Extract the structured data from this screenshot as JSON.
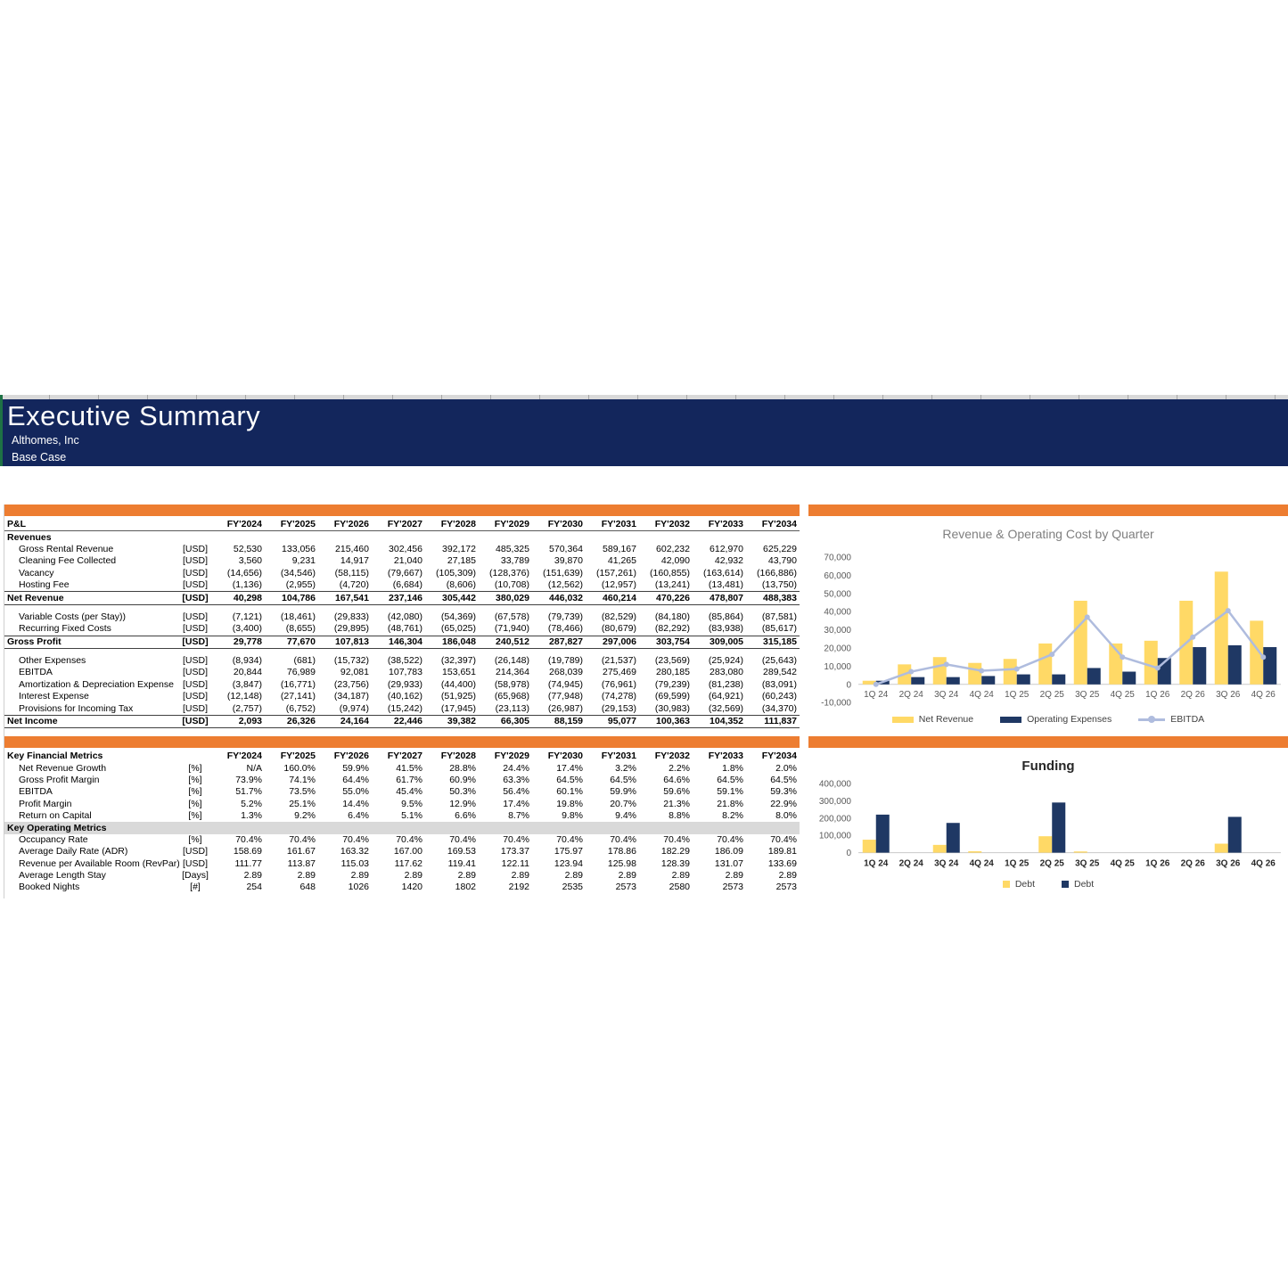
{
  "header": {
    "title": "Executive Summary",
    "company": "Althomes, Inc",
    "scenario": "Base Case"
  },
  "years": [
    "FY'2024",
    "FY'2025",
    "FY'2026",
    "FY'2027",
    "FY'2028",
    "FY'2029",
    "FY'2030",
    "FY'2031",
    "FY'2032",
    "FY'2033",
    "FY'2034"
  ],
  "pnl": {
    "header_label": "P&L",
    "rows": [
      {
        "type": "section",
        "label": "Revenues"
      },
      {
        "type": "item",
        "label": "Gross Rental Revenue",
        "unit": "[USD]",
        "values": [
          "52,530",
          "133,056",
          "215,460",
          "302,456",
          "392,172",
          "485,325",
          "570,364",
          "589,167",
          "602,232",
          "612,970",
          "625,229"
        ]
      },
      {
        "type": "item",
        "label": "Cleaning Fee Collected",
        "unit": "[USD]",
        "values": [
          "3,560",
          "9,231",
          "14,917",
          "21,040",
          "27,185",
          "33,789",
          "39,870",
          "41,265",
          "42,090",
          "42,932",
          "43,790"
        ]
      },
      {
        "type": "item",
        "label": "Vacancy",
        "unit": "[USD]",
        "values": [
          "(14,656)",
          "(34,546)",
          "(58,115)",
          "(79,667)",
          "(105,309)",
          "(128,376)",
          "(151,639)",
          "(157,261)",
          "(160,855)",
          "(163,614)",
          "(166,886)"
        ]
      },
      {
        "type": "item",
        "label": "Hosting Fee",
        "unit": "[USD]",
        "values": [
          "(1,136)",
          "(2,955)",
          "(4,720)",
          "(6,684)",
          "(8,606)",
          "(10,708)",
          "(12,562)",
          "(12,957)",
          "(13,241)",
          "(13,481)",
          "(13,750)"
        ]
      },
      {
        "type": "total",
        "label": "Net Revenue",
        "unit": "[USD]",
        "values": [
          "40,298",
          "104,786",
          "167,541",
          "237,146",
          "305,442",
          "380,029",
          "446,032",
          "460,214",
          "470,226",
          "478,807",
          "488,383"
        ]
      },
      {
        "type": "spacer"
      },
      {
        "type": "item",
        "label": "Variable Costs (per Stay))",
        "unit": "[USD]",
        "values": [
          "(7,121)",
          "(18,461)",
          "(29,833)",
          "(42,080)",
          "(54,369)",
          "(67,578)",
          "(79,739)",
          "(82,529)",
          "(84,180)",
          "(85,864)",
          "(87,581)"
        ]
      },
      {
        "type": "item",
        "label": "Recurring Fixed Costs",
        "unit": "[USD]",
        "values": [
          "(3,400)",
          "(8,655)",
          "(29,895)",
          "(48,761)",
          "(65,025)",
          "(71,940)",
          "(78,466)",
          "(80,679)",
          "(82,292)",
          "(83,938)",
          "(85,617)"
        ]
      },
      {
        "type": "total",
        "label": "Gross Profit",
        "unit": "[USD]",
        "values": [
          "29,778",
          "77,670",
          "107,813",
          "146,304",
          "186,048",
          "240,512",
          "287,827",
          "297,006",
          "303,754",
          "309,005",
          "315,185"
        ]
      },
      {
        "type": "spacer"
      },
      {
        "type": "item",
        "label": "Other Expenses",
        "unit": "[USD]",
        "values": [
          "(8,934)",
          "(681)",
          "(15,732)",
          "(38,522)",
          "(32,397)",
          "(26,148)",
          "(19,789)",
          "(21,537)",
          "(23,569)",
          "(25,924)",
          "(25,643)"
        ]
      },
      {
        "type": "item",
        "label": "EBITDA",
        "unit": "[USD]",
        "values": [
          "20,844",
          "76,989",
          "92,081",
          "107,783",
          "153,651",
          "214,364",
          "268,039",
          "275,469",
          "280,185",
          "283,080",
          "289,542"
        ]
      },
      {
        "type": "item",
        "label": "Amortization & Depreciation Expense",
        "unit": "[USD]",
        "values": [
          "(3,847)",
          "(16,771)",
          "(23,756)",
          "(29,933)",
          "(44,400)",
          "(58,978)",
          "(74,945)",
          "(76,961)",
          "(79,239)",
          "(81,238)",
          "(83,091)"
        ]
      },
      {
        "type": "item",
        "label": "Interest Expense",
        "unit": "[USD]",
        "values": [
          "(12,148)",
          "(27,141)",
          "(34,187)",
          "(40,162)",
          "(51,925)",
          "(65,968)",
          "(77,948)",
          "(74,278)",
          "(69,599)",
          "(64,921)",
          "(60,243)"
        ]
      },
      {
        "type": "item",
        "label": "Provisions for Incoming Tax",
        "unit": "[USD]",
        "values": [
          "(2,757)",
          "(6,752)",
          "(9,974)",
          "(15,242)",
          "(17,945)",
          "(23,113)",
          "(26,987)",
          "(29,153)",
          "(30,983)",
          "(32,569)",
          "(34,370)"
        ]
      },
      {
        "type": "total",
        "label": "Net Income",
        "unit": "[USD]",
        "values": [
          "2,093",
          "26,326",
          "24,164",
          "22,446",
          "39,382",
          "66,305",
          "88,159",
          "95,077",
          "100,363",
          "104,352",
          "111,837"
        ]
      }
    ]
  },
  "metrics": {
    "header_label": "Key Financial Metrics",
    "rows": [
      {
        "type": "item",
        "label": "Net Revenue Growth",
        "unit": "[%]",
        "values": [
          "N/A",
          "160.0%",
          "59.9%",
          "41.5%",
          "28.8%",
          "24.4%",
          "17.4%",
          "3.2%",
          "2.2%",
          "1.8%",
          "2.0%"
        ]
      },
      {
        "type": "item",
        "label": "Gross Profit Margin",
        "unit": "[%]",
        "values": [
          "73.9%",
          "74.1%",
          "64.4%",
          "61.7%",
          "60.9%",
          "63.3%",
          "64.5%",
          "64.5%",
          "64.6%",
          "64.5%",
          "64.5%"
        ]
      },
      {
        "type": "item",
        "label": "EBITDA",
        "unit": "[%]",
        "values": [
          "51.7%",
          "73.5%",
          "55.0%",
          "45.4%",
          "50.3%",
          "56.4%",
          "60.1%",
          "59.9%",
          "59.6%",
          "59.1%",
          "59.3%"
        ]
      },
      {
        "type": "item",
        "label": "Profit Margin",
        "unit": "[%]",
        "values": [
          "5.2%",
          "25.1%",
          "14.4%",
          "9.5%",
          "12.9%",
          "17.4%",
          "19.8%",
          "20.7%",
          "21.3%",
          "21.8%",
          "22.9%"
        ]
      },
      {
        "type": "item",
        "label": "Return on Capital",
        "unit": "[%]",
        "values": [
          "1.3%",
          "9.2%",
          "6.4%",
          "5.1%",
          "6.6%",
          "8.7%",
          "9.8%",
          "9.4%",
          "8.8%",
          "8.2%",
          "8.0%"
        ]
      },
      {
        "type": "band",
        "label": "Key Operating Metrics"
      },
      {
        "type": "item",
        "label": "Occupancy Rate",
        "unit": "[%]",
        "values": [
          "70.4%",
          "70.4%",
          "70.4%",
          "70.4%",
          "70.4%",
          "70.4%",
          "70.4%",
          "70.4%",
          "70.4%",
          "70.4%",
          "70.4%"
        ]
      },
      {
        "type": "item",
        "label": "Average Daily Rate (ADR)",
        "unit": "[USD]",
        "values": [
          "158.69",
          "161.67",
          "163.32",
          "167.00",
          "169.53",
          "173.37",
          "175.97",
          "178.86",
          "182.29",
          "186.09",
          "189.81"
        ]
      },
      {
        "type": "item",
        "label": "Revenue per Available Room (RevPar)",
        "unit": "[USD]",
        "values": [
          "111.77",
          "113.87",
          "115.03",
          "117.62",
          "119.41",
          "122.11",
          "123.94",
          "125.98",
          "128.39",
          "131.07",
          "133.69"
        ]
      },
      {
        "type": "item",
        "label": "Average Length Stay",
        "unit": "[Days]",
        "values": [
          "2.89",
          "2.89",
          "2.89",
          "2.89",
          "2.89",
          "2.89",
          "2.89",
          "2.89",
          "2.89",
          "2.89",
          "2.89"
        ]
      },
      {
        "type": "item",
        "label": "Booked Nights",
        "unit": "[#]",
        "values": [
          "254",
          "648",
          "1026",
          "1420",
          "1802",
          "2192",
          "2535",
          "2573",
          "2580",
          "2573",
          "2573"
        ]
      }
    ]
  },
  "chart_data": [
    {
      "type": "bar+line",
      "title": "Revenue & Operating Cost by Quarter",
      "categories": [
        "1Q 24",
        "2Q 24",
        "3Q 24",
        "4Q 24",
        "1Q 25",
        "2Q 25",
        "3Q 25",
        "4Q 25",
        "1Q 26",
        "2Q 26",
        "3Q 26",
        "4Q 26"
      ],
      "series": [
        {
          "name": "Net Revenue",
          "type": "bar",
          "color": "#FFD966",
          "values": [
            2000,
            11000,
            15000,
            11800,
            14000,
            22500,
            46000,
            22500,
            24000,
            46000,
            62000,
            35000
          ]
        },
        {
          "name": "Operating Expenses",
          "type": "bar",
          "color": "#1F3864",
          "values": [
            2000,
            4000,
            4000,
            4600,
            5500,
            5500,
            9000,
            7000,
            14500,
            20500,
            21500,
            20500
          ]
        },
        {
          "name": "EBITDA",
          "type": "line",
          "color": "#AFBCDE",
          "values": [
            0,
            7000,
            11000,
            7500,
            8500,
            16500,
            37000,
            15000,
            9000,
            26000,
            40500,
            15000
          ]
        }
      ],
      "ylim": [
        -10000,
        70000
      ],
      "ytick_step": 10000,
      "legend_position": "bottom",
      "grid": false
    },
    {
      "type": "bar",
      "title": "Funding",
      "categories": [
        "1Q 24",
        "2Q 24",
        "3Q 24",
        "4Q 24",
        "1Q 25",
        "2Q 25",
        "3Q 25",
        "4Q 25",
        "1Q 26",
        "2Q 26",
        "3Q 26",
        "4Q 26"
      ],
      "series": [
        {
          "name": "Debt",
          "type": "bar",
          "color": "#FFD966",
          "values": [
            75000,
            0,
            45000,
            8000,
            0,
            95000,
            7000,
            0,
            0,
            0,
            52000,
            0
          ]
        },
        {
          "name": "Debt",
          "type": "bar",
          "color": "#1F3864",
          "values": [
            220000,
            0,
            172000,
            0,
            0,
            290000,
            0,
            0,
            0,
            0,
            207000,
            0
          ]
        }
      ],
      "ylim": [
        0,
        400000
      ],
      "ytick_step": 100000,
      "legend_position": "bottom",
      "grid": false
    }
  ],
  "colors": {
    "header_navy": "#13265C",
    "accent_orange": "#ED7D31",
    "bar_yellow": "#FFD966",
    "bar_navy": "#1F3864",
    "line_blue": "#AFBCDE",
    "band_gray": "#D9D9D9"
  }
}
